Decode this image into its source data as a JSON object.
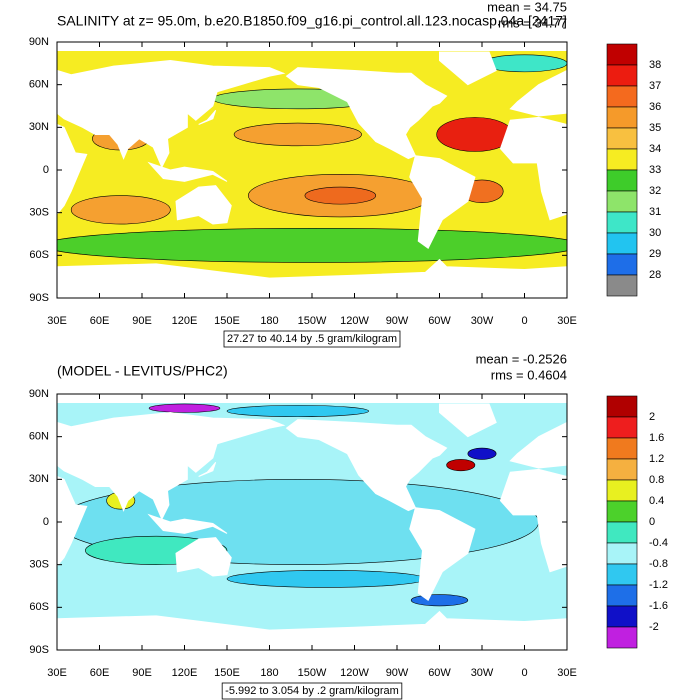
{
  "panels": [
    {
      "title": "SALINITY at z=  95.0m, b.e20.B1850.f09_g16.pi_control.all.123.nocasp.04a [2417]",
      "mean": "mean = 34.75",
      "rms": "rms = 34.77",
      "contour_info": "27.27 to 40.14 by .5 gram/kilogram",
      "lat_labels": [
        "90N",
        "60N",
        "30N",
        "0",
        "30S",
        "60S",
        "90S"
      ],
      "lon_labels": [
        "30E",
        "60E",
        "90E",
        "120E",
        "150E",
        "180",
        "150W",
        "120W",
        "90W",
        "60W",
        "30W",
        "0",
        "30E"
      ],
      "colorbar": {
        "colors": [
          "#c00000",
          "#ec1c10",
          "#f46a1e",
          "#f59a2a",
          "#f8c040",
          "#f6ec22",
          "#3ecc2a",
          "#8ee46a",
          "#3ee6c8",
          "#22c4f0",
          "#1e6ee8",
          "#8a8a8a"
        ],
        "labels": [
          "38",
          "37",
          "36",
          "35",
          "34",
          "33",
          "32",
          "31",
          "30",
          "29",
          "28"
        ]
      }
    },
    {
      "title": "(MODEL - LEVITUS/PHC2)",
      "mean": "mean = -0.2526",
      "rms": "rms = 0.4604",
      "contour_info": "-5.992 to 3.054 by .2 gram/kilogram",
      "lat_labels": [
        "90N",
        "60N",
        "30N",
        "0",
        "30S",
        "60S",
        "90S"
      ],
      "lon_labels": [
        "30E",
        "60E",
        "90E",
        "120E",
        "150E",
        "180",
        "150W",
        "120W",
        "90W",
        "60W",
        "30W",
        "0",
        "30E"
      ],
      "colorbar": {
        "colors": [
          "#b00000",
          "#ee1e1e",
          "#f07a1e",
          "#f5b040",
          "#e8f020",
          "#4cd12b",
          "#40e8c0",
          "#a8f4f8",
          "#30c8f0",
          "#1e6fe8",
          "#1010c8",
          "#c020e0"
        ],
        "labels": [
          "2",
          "1.6",
          "1.2",
          "0.8",
          "0.4",
          "0",
          "-0.4",
          "-0.8",
          "-1.2",
          "-1.6",
          "-2"
        ]
      }
    }
  ]
}
